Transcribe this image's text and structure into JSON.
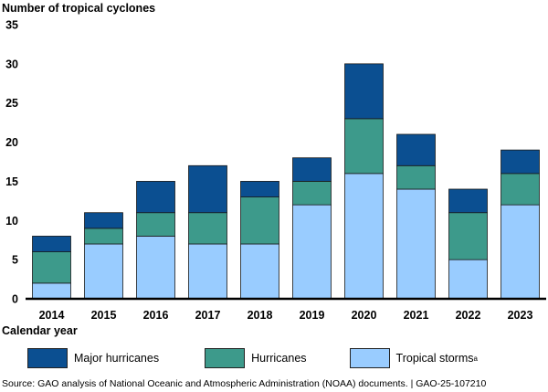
{
  "chart_data": {
    "type": "bar",
    "stacked": true,
    "ylabel": "Number of tropical cyclones",
    "xlabel": "Calendar year",
    "ylim": [
      0,
      35
    ],
    "yticks": [
      0,
      5,
      10,
      15,
      20,
      25,
      30,
      35
    ],
    "categories": [
      "2014",
      "2015",
      "2016",
      "2017",
      "2018",
      "2019",
      "2020",
      "2021",
      "2022",
      "2023"
    ],
    "series": [
      {
        "name": "Tropical storms",
        "superscript": "a",
        "color": "#99ccff",
        "values": [
          2,
          7,
          8,
          7,
          7,
          12,
          16,
          14,
          5,
          12
        ]
      },
      {
        "name": "Hurricanes",
        "superscript": "",
        "color": "#3d9a8b",
        "values": [
          4,
          2,
          3,
          4,
          6,
          3,
          7,
          3,
          6,
          4
        ]
      },
      {
        "name": "Major hurricanes",
        "superscript": "",
        "color": "#0b4f91",
        "values": [
          2,
          2,
          4,
          6,
          2,
          3,
          7,
          4,
          3,
          3
        ]
      }
    ],
    "legend_order": [
      2,
      1,
      0
    ],
    "legend_placement": "bottom",
    "grid": false
  },
  "source": "Source: GAO analysis of National Oceanic and Atmospheric Administration (NOAA) documents.  |  GAO-25-107210"
}
